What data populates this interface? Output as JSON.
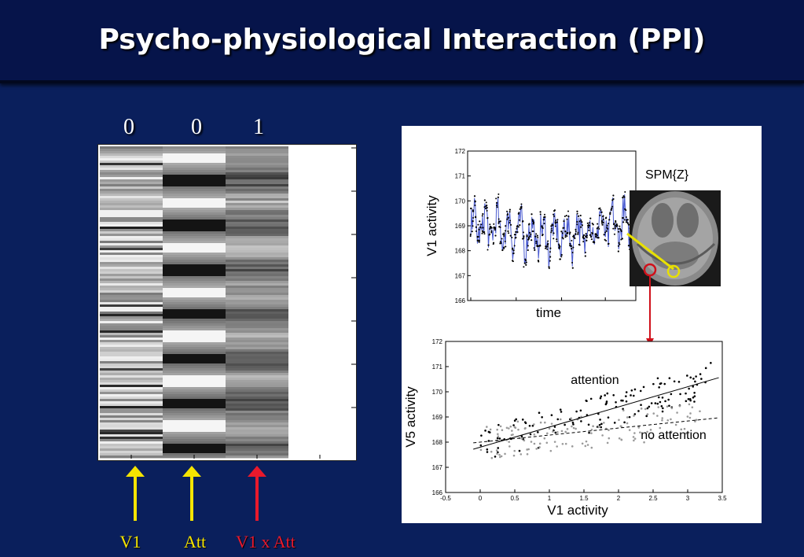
{
  "slide": {
    "title": "Psycho-physiological Interaction (PPI)",
    "column_weights": [
      "0",
      "0",
      "1"
    ],
    "regressors": [
      {
        "label": "V1",
        "color": "#f5e400"
      },
      {
        "label": "Att",
        "color": "#f5e400"
      },
      {
        "label": "V1 x Att",
        "color": "#e8192c"
      }
    ]
  },
  "figure": {
    "spm_label": "SPM{Z}",
    "timeseries": {
      "ylabel": "V1 activity",
      "xlabel": "time",
      "yticks": [
        "172",
        "171",
        "170",
        "169",
        "168",
        "167",
        "166"
      ],
      "ylim": [
        166,
        172
      ]
    },
    "scatter": {
      "ylabel": "V5 activity",
      "xlabel": "V1 activity",
      "yticks": [
        "172",
        "171",
        "170",
        "169",
        "168",
        "167",
        "166"
      ],
      "xticks": [
        "-0.5",
        "0",
        "0.5",
        "1",
        "1.5",
        "2",
        "2.5",
        "3",
        "3.5"
      ],
      "xlim": [
        -0.5,
        3.5
      ],
      "ylim": [
        166,
        172
      ],
      "series_labels": [
        "attention",
        "no attention"
      ],
      "fits": [
        {
          "name": "attention",
          "intercept": 167.8,
          "slope": 0.8
        },
        {
          "name": "no attention",
          "intercept": 168.0,
          "slope": 0.28
        }
      ]
    }
  },
  "colors": {
    "background": "#0a1f5c",
    "arrow_yellow": "#f5e400",
    "arrow_red": "#e8192c",
    "roi_red": "#d0101a",
    "roi_yellow": "#e8e000"
  }
}
